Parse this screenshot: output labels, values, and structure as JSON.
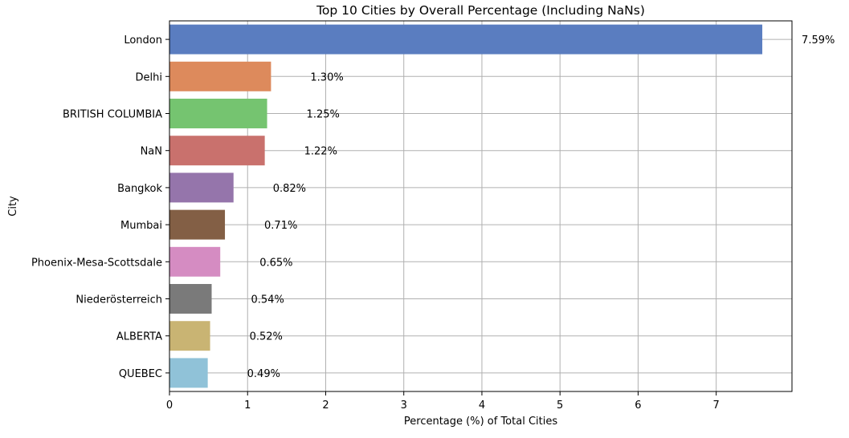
{
  "chart_data": {
    "type": "bar",
    "orientation": "horizontal",
    "title": "Top 10 Cities by Overall Percentage (Including NaNs)",
    "xlabel": "Percentage (%) of Total Cities",
    "ylabel": "City",
    "xlim": [
      0,
      7.97
    ],
    "xticks": [
      "0",
      "1",
      "2",
      "3",
      "4",
      "5",
      "6",
      "7"
    ],
    "grid": true,
    "categories": [
      "London",
      "Delhi",
      "BRITISH COLUMBIA",
      "NaN",
      "Bangkok",
      "Mumbai",
      "Phoenix-Mesa-Scottsdale",
      "Niederösterreich",
      "ALBERTA",
      "QUEBEC"
    ],
    "values": [
      7.59,
      1.3,
      1.25,
      1.22,
      0.82,
      0.71,
      0.65,
      0.54,
      0.52,
      0.49
    ],
    "value_labels": [
      "7.59%",
      "1.30%",
      "1.25%",
      "1.22%",
      "0.82%",
      "0.71%",
      "0.65%",
      "0.54%",
      "0.52%",
      "0.49%"
    ],
    "colors": [
      "#5a7dc0",
      "#dd8a5c",
      "#75c470",
      "#c9716d",
      "#9575ab",
      "#835f45",
      "#d58cc2",
      "#7a7a7a",
      "#c9b473",
      "#90c2d8"
    ]
  }
}
